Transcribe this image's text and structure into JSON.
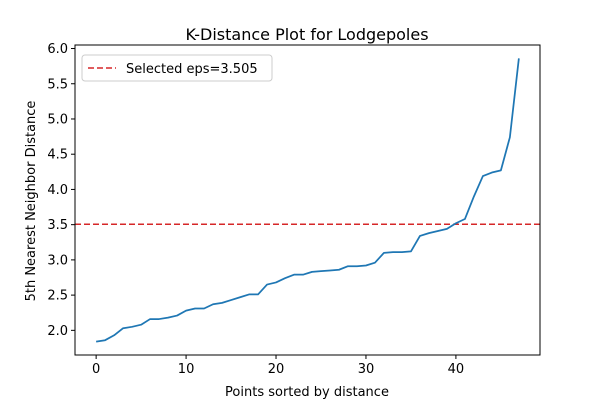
{
  "chart_data": {
    "type": "line",
    "title": "K-Distance Plot for Lodgepoles",
    "xlabel": "Points sorted by distance",
    "ylabel": "5th Nearest Neighbor Distance",
    "xlim": [
      -2.35,
      49.35
    ],
    "ylim": [
      1.65,
      6.05
    ],
    "xticks": [
      0,
      10,
      20,
      30,
      40
    ],
    "yticks": [
      2.0,
      2.5,
      3.0,
      3.5,
      4.0,
      4.5,
      5.0,
      5.5,
      6.0
    ],
    "ytick_labels": [
      "2.0",
      "2.5",
      "3.0",
      "3.5",
      "4.0",
      "4.5",
      "5.0",
      "5.5",
      "6.0"
    ],
    "grid": false,
    "legend_position": "top-left",
    "series": [
      {
        "color": "#1f77b4",
        "x": [
          0,
          1,
          2,
          3,
          4,
          5,
          6,
          7,
          8,
          9,
          10,
          11,
          12,
          13,
          14,
          15,
          16,
          17,
          18,
          19,
          20,
          21,
          22,
          23,
          24,
          25,
          26,
          27,
          28,
          29,
          30,
          31,
          32,
          33,
          34,
          35,
          36,
          37,
          38,
          39,
          40,
          41,
          42,
          43,
          44,
          45,
          46,
          47
        ],
        "y": [
          1.84,
          1.86,
          1.93,
          2.03,
          2.05,
          2.08,
          2.16,
          2.16,
          2.18,
          2.21,
          2.28,
          2.31,
          2.31,
          2.37,
          2.39,
          2.43,
          2.47,
          2.51,
          2.51,
          2.65,
          2.68,
          2.74,
          2.79,
          2.79,
          2.83,
          2.84,
          2.85,
          2.86,
          2.91,
          2.91,
          2.92,
          2.96,
          3.1,
          3.11,
          3.11,
          3.12,
          3.34,
          3.38,
          3.41,
          3.44,
          3.52,
          3.58,
          3.9,
          4.19,
          4.24,
          4.27,
          4.74,
          5.86
        ]
      }
    ],
    "reference_line": {
      "label": "Selected eps=3.505",
      "y": 3.505,
      "color": "#d62728",
      "style": "dashed"
    }
  }
}
